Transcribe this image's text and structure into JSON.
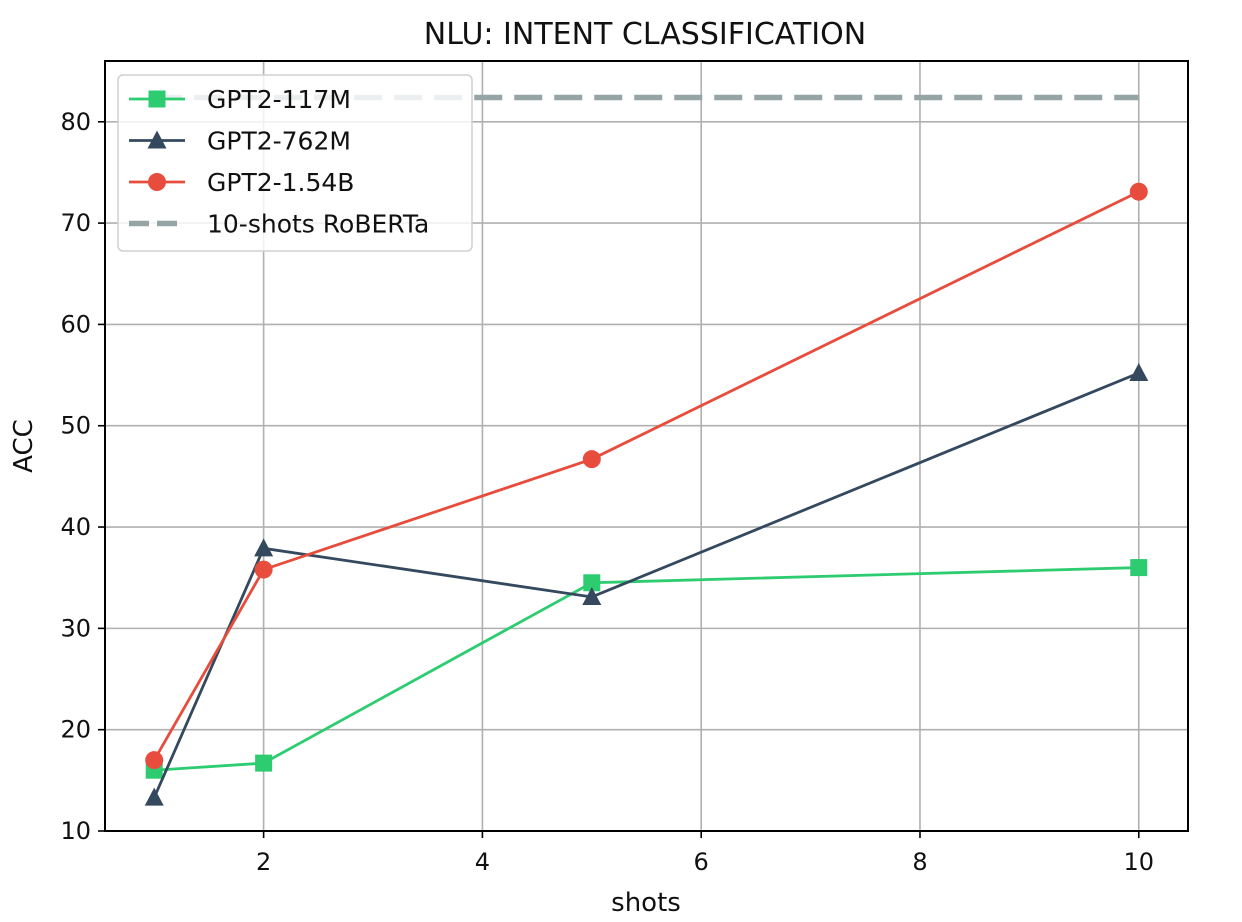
{
  "chart_data": {
    "type": "line",
    "title": "NLU: INTENT CLASSIFICATION",
    "xlabel": "shots",
    "ylabel": "ACC",
    "xlim": [
      0.55,
      10.45
    ],
    "ylim": [
      10,
      86
    ],
    "xticks": [
      2,
      4,
      6,
      8,
      10
    ],
    "yticks": [
      10,
      20,
      30,
      40,
      50,
      60,
      70,
      80
    ],
    "grid": true,
    "legend_position": "top-left",
    "x": [
      1,
      2,
      5,
      10
    ],
    "series": [
      {
        "name": "GPT2-117M",
        "values": [
          16.0,
          16.7,
          34.5,
          36.0
        ],
        "color": "#2ecc71",
        "marker": "square"
      },
      {
        "name": "GPT2-762M",
        "values": [
          13.3,
          37.9,
          33.1,
          55.2
        ],
        "color": "#34495e",
        "marker": "triangle"
      },
      {
        "name": "GPT2-1.54B",
        "values": [
          17.0,
          35.8,
          46.7,
          73.1
        ],
        "color": "#e74c3c",
        "marker": "circle"
      }
    ],
    "reference_lines": [
      {
        "name": "10-shots RoBERTa",
        "y": 82.4,
        "x_range": [
          1,
          10
        ],
        "color": "#95a5a6",
        "style": "dashed"
      }
    ]
  }
}
